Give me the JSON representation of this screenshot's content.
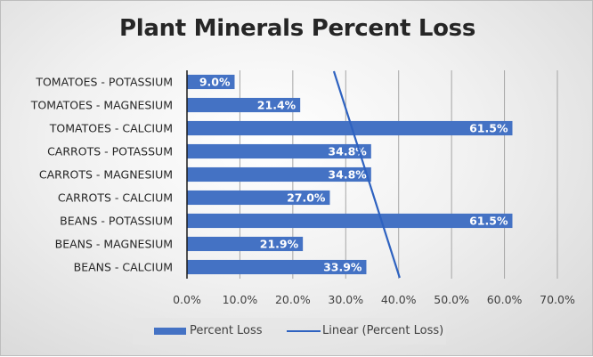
{
  "chart_data": {
    "type": "bar",
    "orientation": "horizontal",
    "title": "Plant Minerals Percent Loss",
    "categories": [
      "BEANS - CALCIUM",
      "BEANS - MAGNESIUM",
      "BEANS - POTASSIUM",
      "CARROTS - CALCIUM",
      "CARROTS - MAGNESIUM",
      "CARROTS - POTASSUM",
      "TOMATOES - CALCIUM",
      "TOMATOES - MAGNESIUM",
      "TOMATOES - POTASSIUM"
    ],
    "series": [
      {
        "name": "Percent Loss",
        "values": [
          33.9,
          21.9,
          61.5,
          27.0,
          34.8,
          34.8,
          61.5,
          21.4,
          9.0
        ],
        "color": "#4472c4"
      }
    ],
    "data_labels": [
      "33.9%",
      "21.9%",
      "61.5%",
      "27.0%",
      "34.8%",
      "34.8%",
      "61.5%",
      "21.4%",
      "9.0%"
    ],
    "trendline": {
      "name": "Linear (Percent Loss)",
      "type": "linear",
      "color": "#2e62c0"
    },
    "xlim": [
      0,
      70
    ],
    "xticks": [
      "0.0%",
      "10.0%",
      "20.0%",
      "30.0%",
      "40.0%",
      "50.0%",
      "60.0%",
      "70.0%"
    ],
    "grid": true,
    "legend": "bottom"
  }
}
